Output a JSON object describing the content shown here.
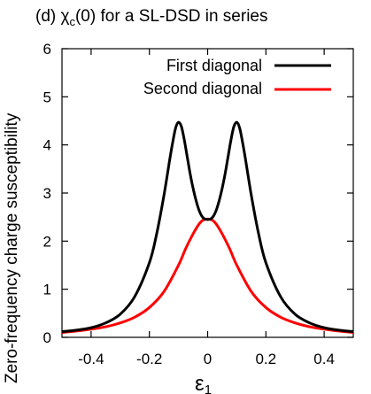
{
  "chart_data": {
    "type": "line",
    "title": "(d) χ",
    "title_sub": "c",
    "title_rest": "(0) for a SL-DSD in series",
    "xlabel": "ε",
    "xlabel_sub": "1",
    "ylabel": "Zero-frequency charge susceptibility",
    "xlim": [
      -0.5,
      0.5
    ],
    "ylim": [
      0,
      6
    ],
    "xticks": [
      -0.4,
      -0.2,
      0,
      0.2,
      0.4
    ],
    "xtick_labels": [
      "-0.4",
      "-0.2",
      "0",
      "0.2",
      "0.4"
    ],
    "yticks": [
      0,
      1,
      2,
      3,
      4,
      5,
      6
    ],
    "ytick_labels": [
      "0",
      "1",
      "2",
      "3",
      "4",
      "5",
      "6"
    ],
    "grid": false,
    "legend_position": "top-right",
    "series": [
      {
        "name": "First diagonal",
        "color": "#000000",
        "x": [
          -0.5,
          -0.45,
          -0.4,
          -0.35,
          -0.3,
          -0.25,
          -0.2,
          -0.175,
          -0.15,
          -0.13,
          -0.12,
          -0.11,
          -0.1,
          -0.09,
          -0.08,
          -0.07,
          -0.06,
          -0.05,
          -0.04,
          -0.03,
          -0.02,
          -0.01,
          0,
          0.01,
          0.02,
          0.03,
          0.04,
          0.05,
          0.06,
          0.07,
          0.08,
          0.09,
          0.1,
          0.11,
          0.12,
          0.13,
          0.15,
          0.175,
          0.2,
          0.25,
          0.3,
          0.35,
          0.4,
          0.45,
          0.5
        ],
        "y": [
          0.12,
          0.15,
          0.2,
          0.3,
          0.48,
          0.85,
          1.55,
          2.15,
          2.95,
          3.7,
          4.05,
          4.35,
          4.47,
          4.38,
          4.1,
          3.75,
          3.4,
          3.1,
          2.85,
          2.65,
          2.52,
          2.46,
          2.45,
          2.46,
          2.52,
          2.65,
          2.85,
          3.1,
          3.4,
          3.75,
          4.1,
          4.38,
          4.47,
          4.35,
          4.05,
          3.7,
          2.95,
          2.15,
          1.55,
          0.85,
          0.48,
          0.3,
          0.2,
          0.15,
          0.12
        ]
      },
      {
        "name": "Second diagonal",
        "color": "#ff0000",
        "x": [
          -0.5,
          -0.45,
          -0.4,
          -0.35,
          -0.3,
          -0.25,
          -0.2,
          -0.15,
          -0.1,
          -0.075,
          -0.05,
          -0.03,
          -0.015,
          0,
          0.015,
          0.03,
          0.05,
          0.075,
          0.1,
          0.15,
          0.2,
          0.25,
          0.3,
          0.35,
          0.4,
          0.45,
          0.5
        ],
        "y": [
          0.1,
          0.13,
          0.17,
          0.22,
          0.3,
          0.42,
          0.62,
          0.95,
          1.5,
          1.85,
          2.15,
          2.35,
          2.44,
          2.46,
          2.44,
          2.35,
          2.15,
          1.85,
          1.5,
          0.95,
          0.62,
          0.42,
          0.3,
          0.22,
          0.17,
          0.13,
          0.1
        ]
      }
    ]
  }
}
